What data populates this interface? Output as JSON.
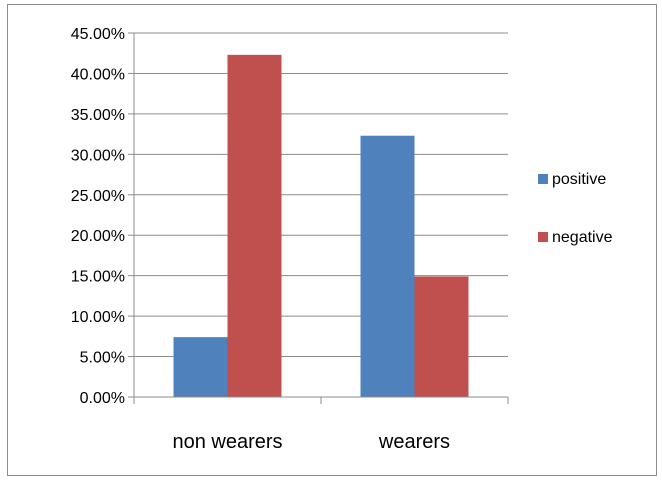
{
  "chart_data": {
    "type": "bar",
    "categories": [
      "non wearers",
      "wearers"
    ],
    "series": [
      {
        "name": "positive",
        "values": [
          7.4,
          32.3
        ],
        "color": "#4F81BD"
      },
      {
        "name": "negative",
        "values": [
          42.3,
          14.9
        ],
        "color": "#C0504D"
      }
    ],
    "ylim": [
      0,
      45
    ],
    "yticks": [
      0,
      5,
      10,
      15,
      20,
      25,
      30,
      35,
      40,
      45
    ],
    "ytick_labels": [
      "0.00%",
      "5.00%",
      "10.00%",
      "15.00%",
      "20.00%",
      "25.00%",
      "30.00%",
      "35.00%",
      "40.00%",
      "45.00%"
    ],
    "grid": true,
    "legend_position": "right",
    "title": "",
    "xlabel": "",
    "ylabel": ""
  }
}
